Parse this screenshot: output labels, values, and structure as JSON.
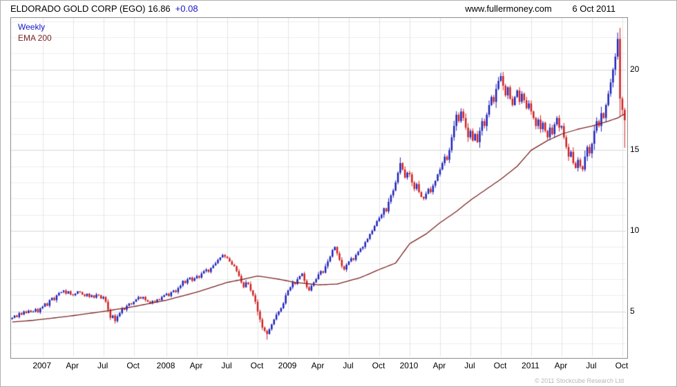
{
  "header": {
    "title": "ELDORADO GOLD CORP (EGO) 16.86",
    "change": "+0.08",
    "site": "www.fullermoney.com",
    "date": "6 Oct 2011"
  },
  "footer": {
    "copyright": "© 2011 Stockcube Research Ltd"
  },
  "chart_data": {
    "type": "candlestick",
    "title": "ELDORADO GOLD CORP (EGO)",
    "timeframe": "Weekly",
    "overlay": "EMA 200",
    "last_price": 16.86,
    "change": 0.08,
    "grid": true,
    "legend_position": "top-left",
    "y_min": 2.2,
    "y_max": 23.2,
    "y_ticks": [
      5,
      10,
      15,
      20
    ],
    "x_ticks": [
      {
        "label": "2007",
        "week": 13
      },
      {
        "label": "Apr",
        "week": 26
      },
      {
        "label": "Jul",
        "week": 39
      },
      {
        "label": "Oct",
        "week": 52
      },
      {
        "label": "2008",
        "week": 66
      },
      {
        "label": "Apr",
        "week": 79
      },
      {
        "label": "Jul",
        "week": 92
      },
      {
        "label": "Oct",
        "week": 105
      },
      {
        "label": "2009",
        "week": 118
      },
      {
        "label": "Apr",
        "week": 131
      },
      {
        "label": "Jul",
        "week": 144
      },
      {
        "label": "Oct",
        "week": 157
      },
      {
        "label": "2010",
        "week": 170
      },
      {
        "label": "Apr",
        "week": 183
      },
      {
        "label": "Jul",
        "week": 196
      },
      {
        "label": "Oct",
        "week": 209
      },
      {
        "label": "2011",
        "week": 222
      },
      {
        "label": "Apr",
        "week": 235
      },
      {
        "label": "Jul",
        "week": 248
      },
      {
        "label": "Oct",
        "week": 261
      }
    ],
    "closes": [
      4.6,
      4.75,
      4.65,
      4.9,
      4.8,
      5.0,
      4.9,
      5.05,
      4.95,
      5.0,
      5.15,
      4.95,
      5.2,
      5.3,
      5.5,
      5.35,
      5.7,
      5.85,
      5.7,
      6.0,
      6.15,
      6.2,
      6.3,
      6.1,
      6.25,
      6.05,
      6.0,
      6.1,
      6.25,
      6.2,
      6.05,
      5.95,
      6.1,
      5.9,
      6.0,
      5.85,
      6.05,
      6.0,
      5.8,
      5.9,
      5.6,
      5.1,
      4.6,
      4.75,
      4.4,
      4.7,
      4.9,
      5.2,
      5.1,
      5.35,
      5.5,
      5.45,
      5.6,
      5.75,
      5.9,
      5.8,
      5.9,
      5.7,
      5.6,
      5.5,
      5.65,
      5.6,
      5.75,
      5.7,
      5.9,
      6.0,
      6.1,
      5.95,
      6.2,
      6.3,
      6.2,
      6.45,
      6.6,
      6.9,
      6.75,
      7.0,
      7.1,
      6.9,
      7.05,
      7.2,
      7.1,
      7.35,
      7.5,
      7.6,
      7.45,
      7.7,
      7.85,
      8.0,
      8.2,
      8.35,
      8.5,
      8.4,
      8.3,
      8.1,
      7.9,
      7.8,
      7.5,
      7.2,
      6.8,
      6.5,
      6.8,
      6.7,
      6.3,
      6.0,
      5.6,
      5.0,
      4.5,
      4.0,
      3.8,
      3.6,
      3.9,
      4.2,
      4.5,
      4.8,
      5.0,
      5.2,
      5.5,
      6.0,
      6.3,
      6.5,
      6.8,
      6.7,
      7.0,
      7.2,
      7.35,
      6.9,
      6.5,
      6.3,
      6.6,
      6.8,
      7.0,
      7.3,
      7.5,
      7.4,
      7.8,
      8.1,
      8.4,
      8.8,
      9.0,
      8.6,
      8.2,
      7.8,
      7.6,
      7.9,
      8.1,
      8.3,
      8.2,
      8.5,
      8.7,
      8.9,
      9.0,
      9.3,
      9.5,
      9.8,
      10.0,
      10.3,
      10.6,
      10.8,
      11.0,
      11.4,
      11.2,
      11.8,
      12.2,
      12.5,
      13.0,
      13.6,
      14.2,
      13.8,
      13.3,
      13.6,
      13.5,
      13.0,
      12.6,
      12.9,
      12.4,
      12.1,
      12.0,
      12.3,
      12.6,
      12.4,
      12.8,
      13.1,
      13.5,
      13.8,
      14.2,
      14.6,
      14.4,
      15.0,
      15.8,
      16.5,
      17.2,
      16.8,
      17.4,
      17.0,
      16.4,
      15.8,
      16.2,
      15.6,
      16.0,
      15.5,
      16.2,
      16.8,
      16.5,
      17.2,
      17.8,
      18.3,
      18.0,
      18.8,
      19.3,
      19.6,
      19.0,
      18.4,
      18.9,
      18.2,
      17.8,
      18.3,
      18.7,
      18.0,
      18.5,
      18.1,
      17.6,
      17.9,
      17.4,
      17.0,
      16.5,
      16.9,
      16.3,
      16.7,
      16.2,
      15.8,
      16.4,
      16.0,
      16.6,
      17.0,
      16.4,
      16.5,
      15.8,
      15.2,
      14.6,
      14.9,
      14.2,
      13.9,
      14.4,
      14.0,
      13.8,
      14.6,
      15.2,
      14.8,
      15.4,
      16.2,
      16.8,
      16.5,
      17.3,
      17.0,
      17.8,
      18.5,
      19.2,
      20.0,
      20.8,
      21.9,
      18.2,
      17.5,
      16.86
    ],
    "ema_anchors": [
      [
        0,
        4.35
      ],
      [
        9,
        4.45
      ],
      [
        24,
        4.7
      ],
      [
        39,
        5.0
      ],
      [
        52,
        5.3
      ],
      [
        66,
        5.7
      ],
      [
        79,
        6.2
      ],
      [
        92,
        6.8
      ],
      [
        99,
        7.0
      ],
      [
        105,
        7.2
      ],
      [
        114,
        7.0
      ],
      [
        121,
        6.8
      ],
      [
        131,
        6.65
      ],
      [
        139,
        6.7
      ],
      [
        149,
        7.1
      ],
      [
        157,
        7.6
      ],
      [
        164,
        8.0
      ],
      [
        170,
        9.2
      ],
      [
        177,
        9.8
      ],
      [
        183,
        10.5
      ],
      [
        190,
        11.2
      ],
      [
        196,
        11.9
      ],
      [
        203,
        12.6
      ],
      [
        209,
        13.2
      ],
      [
        216,
        14.0
      ],
      [
        222,
        15.0
      ],
      [
        229,
        15.6
      ],
      [
        235,
        16.0
      ],
      [
        242,
        16.3
      ],
      [
        248,
        16.5
      ],
      [
        255,
        16.8
      ],
      [
        259,
        17.0
      ],
      [
        262,
        17.25
      ]
    ],
    "wick_overrides": {
      "44": {
        "low": 4.25
      },
      "109": {
        "low": 3.25
      },
      "166": {
        "high": 14.55
      },
      "259": {
        "high": 22.3
      },
      "262": {
        "low": 15.15
      }
    },
    "colors": {
      "up": "#1e22bb",
      "down": "#d02020",
      "ema": "#7b2222",
      "grid_minor": "#ececec",
      "grid_major": "#d6d6d6",
      "grid_vertical": "#e4e4e4"
    },
    "legend": [
      {
        "label": "Weekly",
        "color": "#1515c8"
      },
      {
        "label": "EMA 200",
        "color": "#7b2222"
      }
    ]
  }
}
